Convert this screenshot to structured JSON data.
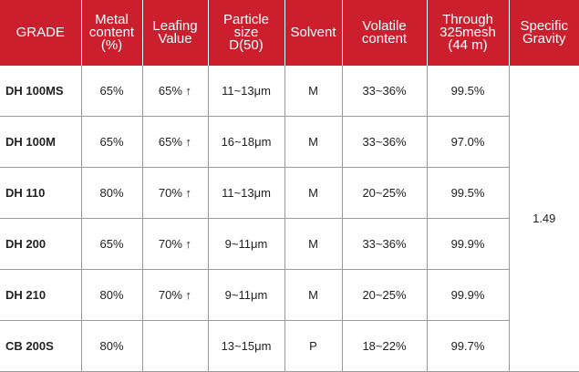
{
  "headers": [
    [
      "GRADE"
    ],
    [
      "Metal",
      "content",
      "(%)"
    ],
    [
      "Leafing",
      "Value"
    ],
    [
      "Particle",
      "size",
      "D(50)"
    ],
    [
      "Solvent"
    ],
    [
      "Volatile",
      "content"
    ],
    [
      "Through",
      "325mesh",
      "(44 m)"
    ],
    [
      "Specific",
      "Gravity"
    ]
  ],
  "rows": [
    {
      "grade": "DH 100MS",
      "metal": "65%",
      "leafing": "65% ↑",
      "particle": "11~13μm",
      "solvent": "M",
      "volatile": "33~36%",
      "through": "99.5%"
    },
    {
      "grade": "DH 100M",
      "metal": "65%",
      "leafing": "65% ↑",
      "particle": "16~18μm",
      "solvent": "M",
      "volatile": "33~36%",
      "through": "97.0%"
    },
    {
      "grade": "DH 110",
      "metal": "80%",
      "leafing": "70% ↑",
      "particle": "11~13μm",
      "solvent": "M",
      "volatile": "20~25%",
      "through": "99.5%"
    },
    {
      "grade": "DH 200",
      "metal": "65%",
      "leafing": "70% ↑",
      "particle": "9~11μm",
      "solvent": "M",
      "volatile": "33~36%",
      "through": "99.9%"
    },
    {
      "grade": "DH 210",
      "metal": "80%",
      "leafing": "70% ↑",
      "particle": "9~11μm",
      "solvent": "M",
      "volatile": "20~25%",
      "through": "99.9%"
    },
    {
      "grade": "CB 200S",
      "metal": "80%",
      "leafing": "",
      "particle": "13~15μm",
      "solvent": "P",
      "volatile": "18~22%",
      "through": "99.7%"
    }
  ],
  "specific_gravity": "1.49",
  "colors": {
    "header_bg": "#cc1f2d",
    "header_text": "#ffffff",
    "grid_line": "#9a9a9a"
  }
}
